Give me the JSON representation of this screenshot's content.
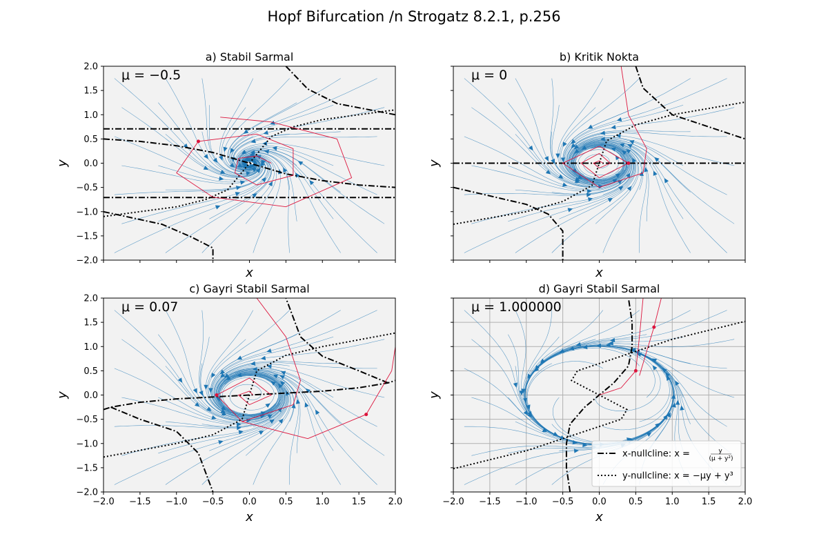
{
  "chart_data": {
    "type": "line",
    "title": "Hopf Bifurcation /n Strogatz 8.2.1, p.256",
    "colors": {
      "background": "#f2f2f2",
      "streamline": "#1f77b4",
      "trajectory": "#dc143c",
      "nullcline": "#000000",
      "grid": "#b0b0b0"
    },
    "panels": [
      {
        "title": "a) Stabil Sarmal",
        "mu": -0.5,
        "mu_label": "μ = −0.5",
        "xlabel": "x",
        "ylabel": "y",
        "xlim": [
          -2,
          2
        ],
        "ylim": [
          -2,
          2
        ],
        "x_tick_labels_shown": false,
        "y_tick_labels_shown": true,
        "grid": false,
        "series": [
          {
            "kind": "x-nullcline",
            "points": [
              [
                -2,
                0.5
              ],
              [
                -1.5,
                0.45
              ],
              [
                -1,
                0.36
              ],
              [
                -0.5,
                0.22
              ],
              [
                0,
                0
              ],
              [
                0.5,
                -0.22
              ],
              [
                1,
                -0.36
              ],
              [
                1.5,
                -0.45
              ],
              [
                2,
                -0.5
              ]
            ]
          },
          {
            "kind": "x-nullcline",
            "points": [
              [
                -2,
                -1.0
              ],
              [
                -1.2,
                -1.26
              ],
              [
                -0.8,
                -1.52
              ],
              [
                -0.5,
                -1.75
              ],
              [
                -0.5,
                -2.0
              ]
            ]
          },
          {
            "kind": "x-nullcline",
            "points": [
              [
                0.5,
                2.0
              ],
              [
                0.8,
                1.53
              ],
              [
                1.2,
                1.23
              ],
              [
                2,
                1.0
              ]
            ]
          },
          {
            "kind": "x-nullcline",
            "points": [
              [
                -2,
                0.707
              ],
              [
                2,
                0.707
              ]
            ]
          },
          {
            "kind": "x-nullcline",
            "points": [
              [
                -2,
                -0.707
              ],
              [
                2,
                -0.707
              ]
            ]
          },
          {
            "kind": "y-nullcline",
            "points": [
              [
                -2,
                -1.1
              ],
              [
                -1,
                -0.9
              ],
              [
                -0.6,
                -0.75
              ],
              [
                -0.3,
                -0.55
              ],
              [
                0,
                0
              ],
              [
                0.3,
                0.55
              ],
              [
                0.6,
                0.75
              ],
              [
                1,
                0.9
              ],
              [
                2,
                1.1
              ]
            ]
          },
          {
            "kind": "trajectory",
            "points": [
              [
                0.3,
                0
              ],
              [
                0.1,
                0.15
              ],
              [
                -0.15,
                0.1
              ],
              [
                -0.2,
                -0.2
              ],
              [
                0.1,
                -0.45
              ],
              [
                0.6,
                -0.25
              ],
              [
                0.6,
                0.3
              ],
              [
                0.1,
                0.6
              ],
              [
                -0.7,
                0.45
              ],
              [
                -1,
                -0.2
              ],
              [
                -0.5,
                -0.7
              ],
              [
                0.5,
                -0.9
              ],
              [
                1.4,
                -0.3
              ],
              [
                1.2,
                0.5
              ],
              [
                0.3,
                0.85
              ],
              [
                -0.4,
                0.95
              ]
            ]
          }
        ]
      },
      {
        "title": "b) Kritik Nokta",
        "mu": 0,
        "mu_label": "μ = 0",
        "xlabel": "x",
        "ylabel": "y",
        "xlim": [
          -2,
          2
        ],
        "ylim": [
          -2,
          2
        ],
        "x_tick_labels_shown": false,
        "y_tick_labels_shown": false,
        "grid": false,
        "series": [
          {
            "kind": "x-nullcline",
            "points": [
              [
                -2,
                0
              ],
              [
                2,
                0
              ]
            ]
          },
          {
            "kind": "x-nullcline",
            "points": [
              [
                -2,
                -0.5
              ],
              [
                -1,
                -0.85
              ],
              [
                -0.7,
                -1.05
              ],
              [
                -0.5,
                -1.4
              ],
              [
                -0.5,
                -2.0
              ]
            ]
          },
          {
            "kind": "x-nullcline",
            "points": [
              [
                0.5,
                2.0
              ],
              [
                0.6,
                1.55
              ],
              [
                1,
                1.0
              ],
              [
                2,
                0.5
              ]
            ]
          },
          {
            "kind": "y-nullcline",
            "points": [
              [
                -2,
                -1.26
              ],
              [
                -1,
                -1.0
              ],
              [
                -0.5,
                -0.79
              ],
              [
                -0.1,
                -0.46
              ],
              [
                0,
                0
              ],
              [
                0.1,
                0.46
              ],
              [
                0.5,
                0.79
              ],
              [
                1,
                1.0
              ],
              [
                2,
                1.26
              ]
            ]
          },
          {
            "kind": "trajectory",
            "points": [
              [
                0.05,
                0
              ],
              [
                0,
                0.05
              ],
              [
                -0.08,
                0
              ],
              [
                0,
                -0.1
              ],
              [
                0.15,
                0
              ],
              [
                0,
                0.2
              ],
              [
                -0.25,
                0
              ],
              [
                0,
                -0.3
              ],
              [
                0.4,
                0
              ],
              [
                0,
                0.35
              ],
              [
                -0.5,
                0
              ],
              [
                0,
                -0.5
              ],
              [
                0.6,
                -0.2
              ],
              [
                0.65,
                0.3
              ],
              [
                0.4,
                1.0
              ],
              [
                0.3,
                2.0
              ]
            ]
          }
        ]
      },
      {
        "title": "c) Gayri Stabil Sarmal",
        "mu": 0.07,
        "mu_label": "μ = 0.07",
        "xlabel": "x",
        "ylabel": "y",
        "xlim": [
          -2,
          2
        ],
        "ylim": [
          -2,
          2
        ],
        "x_tick_labels_shown": true,
        "y_tick_labels_shown": true,
        "grid": false,
        "series": [
          {
            "kind": "x-nullcline",
            "points": [
              [
                -2,
                -0.3
              ],
              [
                -1.9,
                -0.25
              ],
              [
                -1.5,
                -0.15
              ],
              [
                -1,
                -0.08
              ],
              [
                0,
                0
              ],
              [
                1,
                0.08
              ],
              [
                1.5,
                0.15
              ],
              [
                1.9,
                0.25
              ],
              [
                2,
                0.3
              ]
            ]
          },
          {
            "kind": "x-nullcline",
            "points": [
              [
                -1.9,
                -0.25
              ],
              [
                -1.5,
                -0.5
              ],
              [
                -1,
                -0.75
              ],
              [
                -0.7,
                -1.2
              ],
              [
                -0.5,
                -2.0
              ]
            ]
          },
          {
            "kind": "x-nullcline",
            "points": [
              [
                1.9,
                0.25
              ],
              [
                1.5,
                0.5
              ],
              [
                1,
                0.8
              ],
              [
                0.7,
                1.2
              ],
              [
                0.5,
                2.0
              ]
            ]
          },
          {
            "kind": "y-nullcline",
            "points": [
              [
                -2,
                -1.28
              ],
              [
                -1,
                -1.0
              ],
              [
                -0.5,
                -0.82
              ],
              [
                -0.1,
                -0.5
              ],
              [
                0,
                0
              ],
              [
                0.1,
                0.5
              ],
              [
                0.5,
                0.82
              ],
              [
                1,
                1.0
              ],
              [
                2,
                1.28
              ]
            ]
          },
          {
            "kind": "trajectory",
            "points": [
              [
                0.05,
                0
              ],
              [
                0,
                0.08
              ],
              [
                -0.15,
                0
              ],
              [
                0,
                -0.2
              ],
              [
                0.3,
                0
              ],
              [
                0,
                0.35
              ],
              [
                -0.45,
                0
              ],
              [
                -0.1,
                -0.55
              ],
              [
                0.6,
                -0.2
              ],
              [
                0.7,
                0.3
              ],
              [
                0.5,
                1.2
              ],
              [
                0.1,
                2.0
              ]
            ]
          },
          {
            "kind": "trajectory",
            "points": [
              [
                -0.1,
                -0.55
              ],
              [
                0.8,
                -0.9
              ],
              [
                1.6,
                -0.4
              ],
              [
                1.95,
                0.5
              ],
              [
                2,
                1.0
              ]
            ]
          }
        ]
      },
      {
        "title": "d) Gayri Stabil Sarmal",
        "mu": 1.0,
        "mu_label": "μ = 1.000000",
        "xlabel": "x",
        "ylabel": "y",
        "xlim": [
          -2,
          2
        ],
        "ylim": [
          -2,
          2
        ],
        "x_tick_labels_shown": true,
        "y_tick_labels_shown": false,
        "grid": true,
        "legend_placement": "lower right",
        "series": [
          {
            "kind": "x-nullcline",
            "points": [
              [
                -0.4,
                -2.0
              ],
              [
                -0.45,
                -1.5
              ],
              [
                -0.45,
                -1.0
              ],
              [
                -0.4,
                -0.6
              ],
              [
                -0.2,
                -0.25
              ],
              [
                0,
                0
              ],
              [
                0.2,
                0.25
              ],
              [
                0.4,
                0.6
              ],
              [
                0.45,
                1.0
              ],
              [
                0.45,
                1.5
              ],
              [
                0.4,
                2.0
              ]
            ]
          },
          {
            "kind": "y-nullcline",
            "points": [
              [
                -2,
                -1.52
              ],
              [
                -1,
                -1.15
              ],
              [
                -0.4,
                -0.85
              ],
              [
                0.3,
                -0.5
              ],
              [
                0.38,
                -0.3
              ],
              [
                0,
                0
              ],
              [
                -0.38,
                0.3
              ],
              [
                -0.3,
                0.5
              ],
              [
                0.4,
                0.85
              ],
              [
                1,
                1.15
              ],
              [
                2,
                1.52
              ]
            ]
          },
          {
            "kind": "trajectory",
            "points": [
              [
                0,
                0
              ],
              [
                0.3,
                0.15
              ],
              [
                0.5,
                0.5
              ],
              [
                0.55,
                1.2
              ],
              [
                0.6,
                2.0
              ]
            ]
          },
          {
            "kind": "trajectory",
            "points": [
              [
                0.55,
                0.4
              ],
              [
                0.65,
                0.9
              ],
              [
                0.75,
                1.4
              ],
              [
                0.85,
                2.0
              ]
            ]
          }
        ],
        "legend": [
          {
            "label_main": "x-nullcline: x = ",
            "label_num": "y",
            "label_den": "(μ + y²)",
            "style": "dashdot"
          },
          {
            "label_main": "y-nullcline: x = −μy + y³",
            "style": "dotted"
          }
        ]
      }
    ],
    "x_tick_labels": [
      "−2.0",
      "−1.5",
      "−1.0",
      "−0.5",
      "0.0",
      "0.5",
      "1.0",
      "1.5",
      "2.0"
    ],
    "y_tick_labels": [
      "−2.0",
      "−1.5",
      "−1.0",
      "−0.5",
      "0.0",
      "0.5",
      "1.0",
      "1.5",
      "2.0"
    ]
  }
}
